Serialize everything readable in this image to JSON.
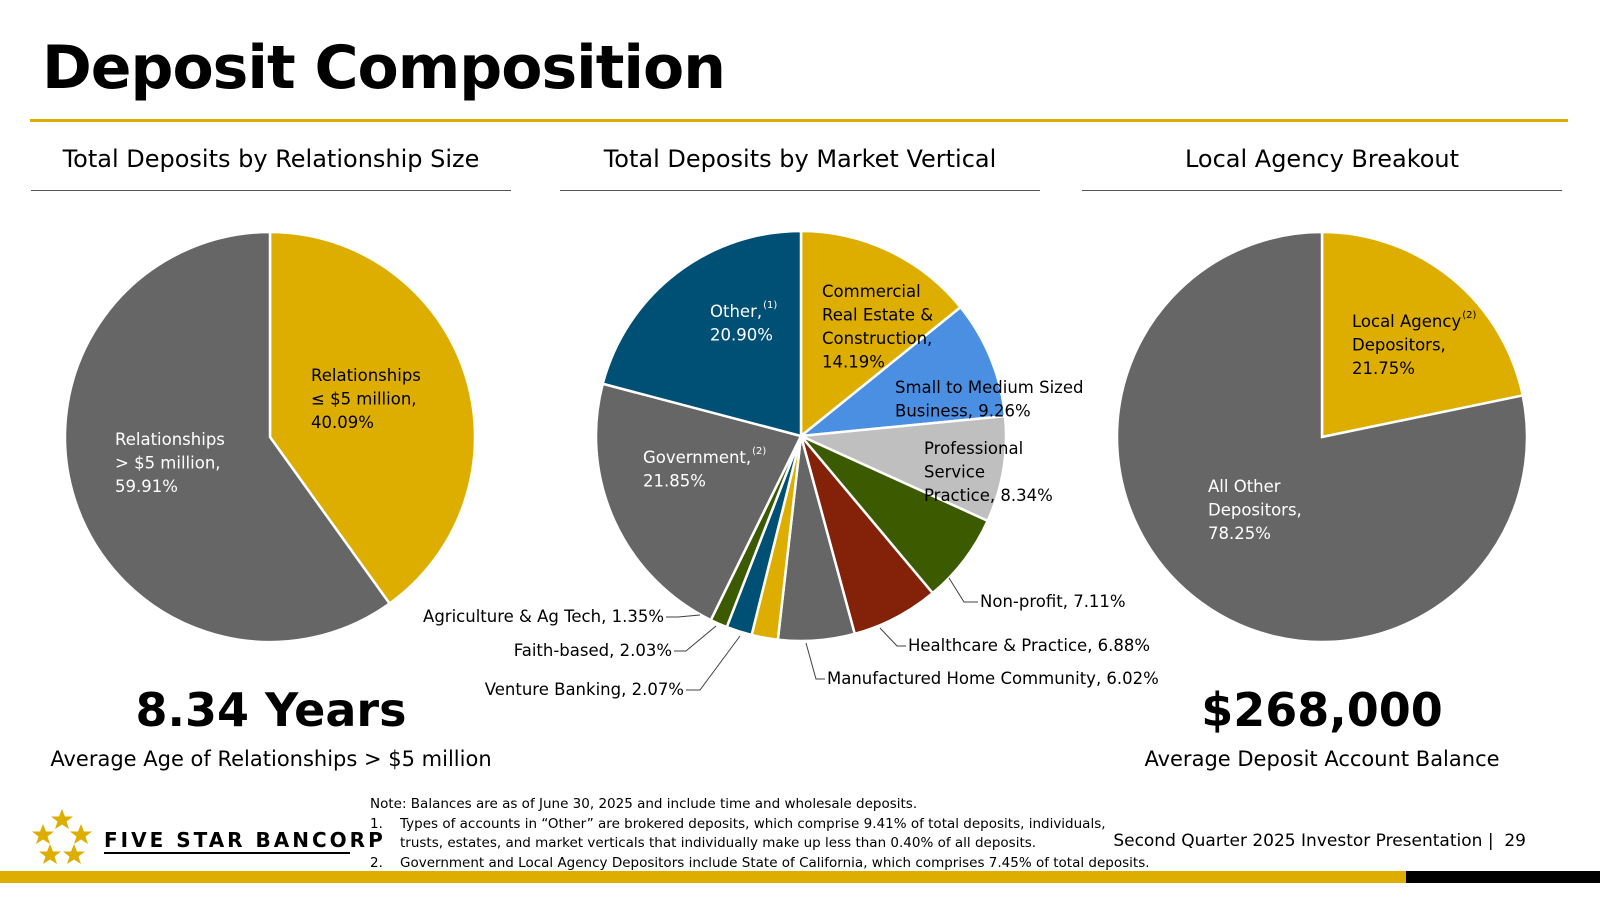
{
  "page": {
    "title": "Deposit Composition",
    "footer": "Second Quarter 2025 Investor Presentation |",
    "page_number": "29",
    "logo_text": "FIVE STAR BANCORP"
  },
  "headers": [
    "Total Deposits by Relationship Size",
    "Total Deposits by Market Vertical",
    "Local Agency Breakout"
  ],
  "stats": {
    "left_value": "8.34 Years",
    "left_label": "Average Age of Relationships > $5 million",
    "right_value": "$268,000",
    "right_label": "Average Deposit Account Balance"
  },
  "notes": {
    "intro": "Note: Balances are as of June 30, 2025 and include time and wholesale deposits.",
    "items": [
      {
        "num": "1.",
        "text": "Types of accounts in “Other” are brokered deposits, which comprise 9.41% of total deposits, individuals, trusts, estates, and market verticals that individually make up less than 0.40% of all deposits."
      },
      {
        "num": "2.",
        "text": "Government and Local Agency Depositors include State of California, which comprises 7.45% of total deposits."
      }
    ]
  },
  "colors": {
    "gold": "#DDAE00",
    "gray": "#666666",
    "navy": "#005075",
    "blue": "#4A8FE2",
    "light_gray": "#BFBFBF",
    "green": "#3C5A00",
    "rust": "#832208"
  },
  "chart_data": [
    {
      "type": "pie",
      "title": "Total Deposits by Relationship Size",
      "slices": [
        {
          "label_lines": [
            "Relationships",
            "≤ $5 million,",
            "40.09%"
          ],
          "value": 40.09,
          "color": "#DDAE00"
        },
        {
          "label_lines": [
            "Relationships",
            "> $5 million,",
            "59.91%"
          ],
          "value": 59.91,
          "color": "#666666"
        }
      ]
    },
    {
      "type": "pie",
      "title": "Total Deposits by Market Vertical",
      "slices": [
        {
          "label_lines": [
            "Commercial",
            "Real Estate &",
            "Construction,",
            "14.19%"
          ],
          "value": 14.19,
          "color": "#DDAE00"
        },
        {
          "label_lines": [
            "Small to Medium Sized",
            "Business, 9.26%"
          ],
          "value": 9.26,
          "color": "#4A8FE2"
        },
        {
          "label_lines": [
            "Professional",
            "Service",
            "Practice, 8.34%"
          ],
          "value": 8.34,
          "color": "#BFBFBF"
        },
        {
          "label_lines": [
            "Non-profit, 7.11%"
          ],
          "value": 7.11,
          "color": "#3C5A00"
        },
        {
          "label_lines": [
            "Healthcare & Practice, 6.88%"
          ],
          "value": 6.88,
          "color": "#832208"
        },
        {
          "label_lines": [
            "Manufactured Home Community, 6.02%"
          ],
          "value": 6.02,
          "color": "#666666"
        },
        {
          "label_lines": [
            "Venture Banking, 2.07%"
          ],
          "value": 2.07,
          "color": "#DDAE00"
        },
        {
          "label_lines": [
            "Faith-based, 2.03%"
          ],
          "value": 2.03,
          "color": "#005075"
        },
        {
          "label_lines": [
            "Agriculture & Ag Tech, 1.35%"
          ],
          "value": 1.35,
          "color": "#3C5A00"
        },
        {
          "label_lines": [
            "Government,",
            "21.85%"
          ],
          "value": 21.85,
          "color": "#666666",
          "superscript": "(2)"
        },
        {
          "label_lines": [
            "Other,",
            "20.90%"
          ],
          "value": 20.9,
          "color": "#005075",
          "superscript": "(1)"
        }
      ]
    },
    {
      "type": "pie",
      "title": "Local Agency Breakout",
      "slices": [
        {
          "label_lines": [
            "Local Agency",
            "Depositors,",
            "21.75%"
          ],
          "value": 21.75,
          "color": "#DDAE00",
          "superscript": "(2)"
        },
        {
          "label_lines": [
            "All Other",
            "Depositors,",
            "78.25%"
          ],
          "value": 78.25,
          "color": "#666666"
        }
      ]
    }
  ]
}
